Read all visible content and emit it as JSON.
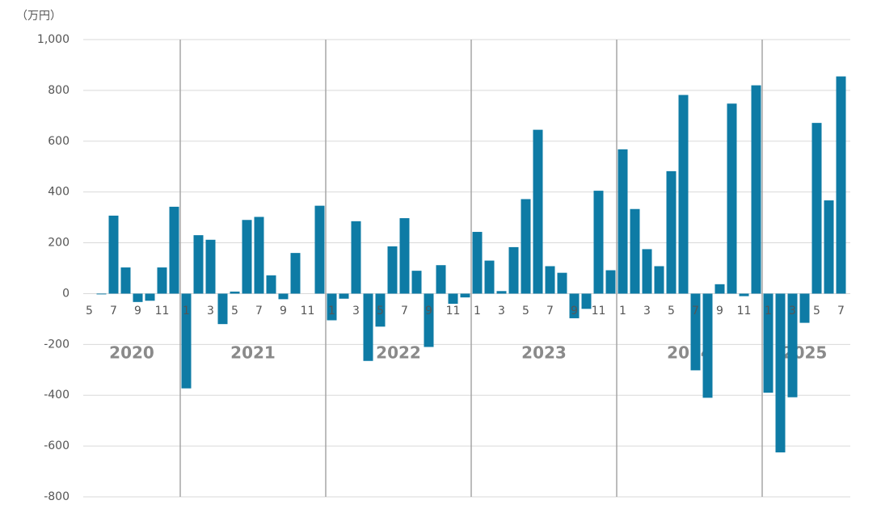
{
  "chart_data": {
    "type": "bar",
    "unit_label": "（万円）",
    "categories": [
      "5",
      null,
      "7",
      null,
      "9",
      null,
      "11",
      null,
      "1",
      null,
      "3",
      null,
      "5",
      null,
      "7",
      null,
      "9",
      null,
      "11",
      null,
      "1",
      null,
      "3",
      null,
      "5",
      null,
      "7",
      null,
      "9",
      null,
      "11",
      null,
      "1",
      null,
      "3",
      null,
      "5",
      null,
      "7",
      null,
      "9",
      null,
      "11",
      null,
      "1",
      null,
      "3",
      null,
      "5",
      null,
      "7",
      null,
      "9",
      null,
      "11",
      null,
      "1",
      null,
      "3",
      null,
      "5",
      null,
      "7"
    ],
    "year_labels": [
      "2020",
      "2021",
      "2022",
      "2023",
      "2024",
      "2025"
    ],
    "values": [
      0,
      -3,
      307,
      103,
      -33,
      -28,
      103,
      342,
      -373,
      230,
      212,
      -120,
      8,
      290,
      302,
      72,
      -22,
      160,
      0,
      346,
      -105,
      -20,
      285,
      -265,
      -130,
      186,
      297,
      90,
      -210,
      112,
      -40,
      -15,
      243,
      130,
      10,
      183,
      372,
      645,
      108,
      82,
      -97,
      -60,
      405,
      92,
      568,
      333,
      175,
      108,
      482,
      782,
      -302,
      -410,
      37,
      748,
      -10,
      820,
      -390,
      -625,
      -408,
      -115,
      672,
      367,
      855
    ],
    "color": "#0e7ba5",
    "ylim": [
      -800,
      1000
    ],
    "yticks": [
      -800,
      -600,
      -400,
      -200,
      0,
      200,
      400,
      600,
      {
        "value": 800,
        "label": "800"
      },
      {
        "value": 1000,
        "label": "1,000"
      }
    ],
    "grid": true
  }
}
